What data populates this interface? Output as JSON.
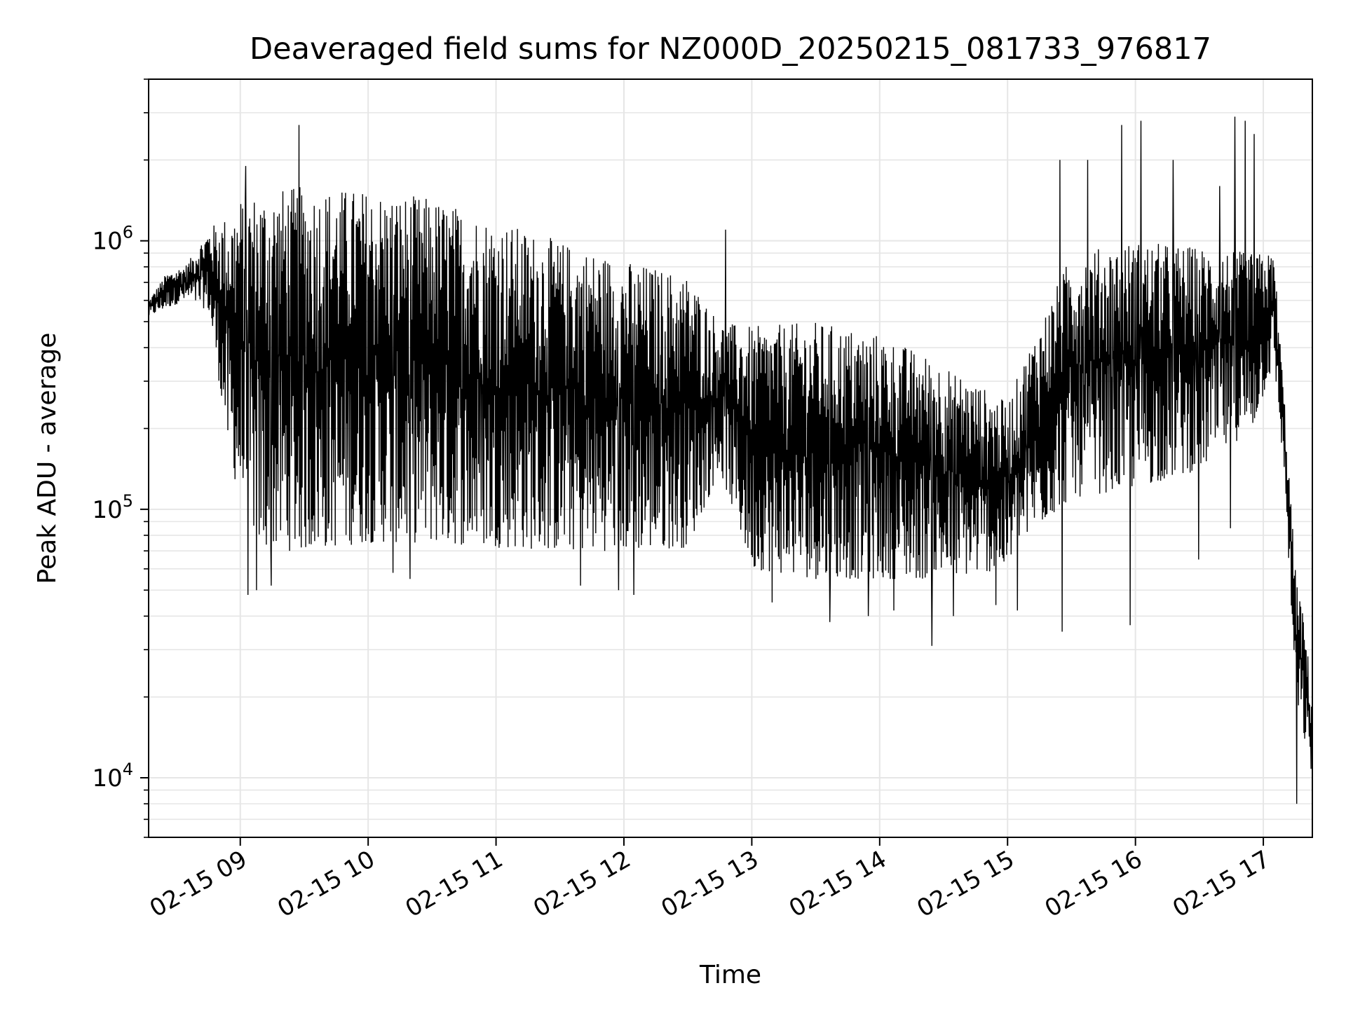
{
  "chart_data": {
    "type": "line",
    "title": "Deaveraged field sums for NZ000D_20250215_081733_976817",
    "xlabel": "Time",
    "ylabel": "Peak ADU - average",
    "y_scale": "log",
    "grid": true,
    "legend": "none",
    "line_color": "#000000",
    "grid_color": "#e6e6e6",
    "xlim": [
      "2025-02-15 08:17",
      "2025-02-15 17:23"
    ],
    "ylim": [
      6000,
      4000000
    ],
    "x_ticks": [
      {
        "value": "2025-02-15 09:00",
        "label": "02-15 09"
      },
      {
        "value": "2025-02-15 10:00",
        "label": "02-15 10"
      },
      {
        "value": "2025-02-15 11:00",
        "label": "02-15 11"
      },
      {
        "value": "2025-02-15 12:00",
        "label": "02-15 12"
      },
      {
        "value": "2025-02-15 13:00",
        "label": "02-15 13"
      },
      {
        "value": "2025-02-15 14:00",
        "label": "02-15 14"
      },
      {
        "value": "2025-02-15 15:00",
        "label": "02-15 15"
      },
      {
        "value": "2025-02-15 16:00",
        "label": "02-15 16"
      },
      {
        "value": "2025-02-15 17:00",
        "label": "02-15 17"
      }
    ],
    "y_ticks": [
      {
        "value": 10000,
        "base": "10",
        "exp": "4"
      },
      {
        "value": 100000,
        "base": "10",
        "exp": "5"
      },
      {
        "value": 1000000,
        "base": "10",
        "exp": "6"
      }
    ],
    "series": [
      {
        "envelope": [
          {
            "t": "2025-02-15 08:17",
            "lo": 520000,
            "hi": 600000
          },
          {
            "t": "2025-02-15 08:25",
            "lo": 560000,
            "hi": 750000
          },
          {
            "t": "2025-02-15 08:35",
            "lo": 600000,
            "hi": 820000
          },
          {
            "t": "2025-02-15 08:45",
            "lo": 550000,
            "hi": 1100000
          },
          {
            "t": "2025-02-15 08:50",
            "lo": 300000,
            "hi": 1200000
          },
          {
            "t": "2025-02-15 08:55",
            "lo": 150000,
            "hi": 1250000
          },
          {
            "t": "2025-02-15 09:00",
            "lo": 110000,
            "hi": 1450000
          },
          {
            "t": "2025-02-15 09:10",
            "lo": 70000,
            "hi": 1550000
          },
          {
            "t": "2025-02-15 09:30",
            "lo": 70000,
            "hi": 1600000
          },
          {
            "t": "2025-02-15 10:00",
            "lo": 75000,
            "hi": 1550000
          },
          {
            "t": "2025-02-15 10:30",
            "lo": 75000,
            "hi": 1450000
          },
          {
            "t": "2025-02-15 11:00",
            "lo": 72000,
            "hi": 1200000
          },
          {
            "t": "2025-02-15 11:30",
            "lo": 70000,
            "hi": 1000000
          },
          {
            "t": "2025-02-15 12:00",
            "lo": 70000,
            "hi": 850000
          },
          {
            "t": "2025-02-15 12:30",
            "lo": 72000,
            "hi": 750000
          },
          {
            "t": "2025-02-15 12:45",
            "lo": 140000,
            "hi": 500000
          },
          {
            "t": "2025-02-15 13:00",
            "lo": 60000,
            "hi": 480000
          },
          {
            "t": "2025-02-15 13:30",
            "lo": 55000,
            "hi": 500000
          },
          {
            "t": "2025-02-15 14:00",
            "lo": 55000,
            "hi": 450000
          },
          {
            "t": "2025-02-15 14:30",
            "lo": 55000,
            "hi": 350000
          },
          {
            "t": "2025-02-15 15:00",
            "lo": 60000,
            "hi": 250000
          },
          {
            "t": "2025-02-15 15:10",
            "lo": 80000,
            "hi": 400000
          },
          {
            "t": "2025-02-15 15:30",
            "lo": 110000,
            "hi": 900000
          },
          {
            "t": "2025-02-15 16:00",
            "lo": 120000,
            "hi": 1000000
          },
          {
            "t": "2025-02-15 16:30",
            "lo": 140000,
            "hi": 950000
          },
          {
            "t": "2025-02-15 16:55",
            "lo": 200000,
            "hi": 900000
          },
          {
            "t": "2025-02-15 17:05",
            "lo": 350000,
            "hi": 900000
          },
          {
            "t": "2025-02-15 17:10",
            "lo": 130000,
            "hi": 250000
          },
          {
            "t": "2025-02-15 17:15",
            "lo": 20000,
            "hi": 60000
          },
          {
            "t": "2025-02-15 17:20",
            "lo": 13000,
            "hi": 35000
          },
          {
            "t": "2025-02-15 17:23",
            "lo": 10000,
            "hi": 18000
          }
        ],
        "spikes": [
          {
            "t": "2025-02-15 09:28",
            "v": 2700000
          },
          {
            "t": "2025-02-15 09:03",
            "v": 1900000
          },
          {
            "t": "2025-02-15 09:04",
            "v": 48000
          },
          {
            "t": "2025-02-15 09:08",
            "v": 50000
          },
          {
            "t": "2025-02-15 09:15",
            "v": 52000
          },
          {
            "t": "2025-02-15 10:12",
            "v": 58000
          },
          {
            "t": "2025-02-15 10:20",
            "v": 55000
          },
          {
            "t": "2025-02-15 11:40",
            "v": 52000
          },
          {
            "t": "2025-02-15 11:58",
            "v": 50000
          },
          {
            "t": "2025-02-15 12:05",
            "v": 48000
          },
          {
            "t": "2025-02-15 12:48",
            "v": 1100000
          },
          {
            "t": "2025-02-15 13:10",
            "v": 45000
          },
          {
            "t": "2025-02-15 13:37",
            "v": 38000
          },
          {
            "t": "2025-02-15 13:55",
            "v": 40000
          },
          {
            "t": "2025-02-15 14:07",
            "v": 42000
          },
          {
            "t": "2025-02-15 14:25",
            "v": 31000
          },
          {
            "t": "2025-02-15 14:35",
            "v": 40000
          },
          {
            "t": "2025-02-15 14:55",
            "v": 44000
          },
          {
            "t": "2025-02-15 15:05",
            "v": 42000
          },
          {
            "t": "2025-02-15 15:25",
            "v": 2000000
          },
          {
            "t": "2025-02-15 15:26",
            "v": 35000
          },
          {
            "t": "2025-02-15 15:38",
            "v": 2000000
          },
          {
            "t": "2025-02-15 15:54",
            "v": 2700000
          },
          {
            "t": "2025-02-15 15:58",
            "v": 37000
          },
          {
            "t": "2025-02-15 16:03",
            "v": 2800000
          },
          {
            "t": "2025-02-15 16:18",
            "v": 2000000
          },
          {
            "t": "2025-02-15 16:40",
            "v": 1600000
          },
          {
            "t": "2025-02-15 16:47",
            "v": 2900000
          },
          {
            "t": "2025-02-15 16:52",
            "v": 2800000
          },
          {
            "t": "2025-02-15 16:56",
            "v": 2500000
          },
          {
            "t": "2025-02-15 16:30",
            "v": 65000
          },
          {
            "t": "2025-02-15 16:45",
            "v": 85000
          },
          {
            "t": "2025-02-15 17:16",
            "v": 8000
          }
        ]
      }
    ]
  }
}
